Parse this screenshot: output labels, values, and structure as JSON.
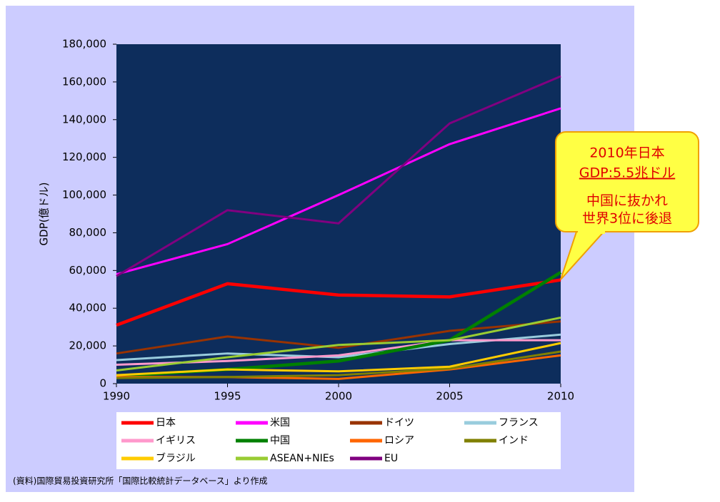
{
  "chart_data": {
    "type": "line",
    "ylabel": "GDP(億ドル)",
    "x": [
      1990,
      1995,
      2000,
      2005,
      2010
    ],
    "xlim": [
      1990,
      2010
    ],
    "xticks": [
      1990,
      1995,
      2000,
      2005,
      2010
    ],
    "ylim": [
      0,
      180000
    ],
    "yticks": [
      0,
      {
        "value": 20000,
        "label": "20,000"
      },
      {
        "value": 40000,
        "label": "40,000"
      },
      {
        "value": 60000,
        "label": "60,000"
      },
      {
        "value": 80000,
        "label": "80,000"
      },
      {
        "value": 100000,
        "label": "100,000"
      },
      {
        "value": 120000,
        "label": "120,000"
      },
      {
        "value": 140000,
        "label": "140,000"
      },
      {
        "value": 160000,
        "label": "160,000"
      },
      {
        "value": 180000,
        "label": "180,000"
      }
    ],
    "grid": false,
    "series": [
      {
        "name": "日本",
        "color": "#ff0000",
        "values": [
          31000,
          53000,
          47000,
          46000,
          55000
        ]
      },
      {
        "name": "米国",
        "color": "#ff00ff",
        "values": [
          58000,
          74000,
          100000,
          127000,
          146000
        ]
      },
      {
        "name": "ドイツ",
        "color": "#993300",
        "values": [
          16000,
          25000,
          19000,
          28000,
          33000
        ]
      },
      {
        "name": "フランス",
        "color": "#99ccdd",
        "values": [
          12500,
          16000,
          14000,
          21000,
          26000
        ]
      },
      {
        "name": "イギリス",
        "color": "#ff99cc",
        "values": [
          10000,
          12000,
          15000,
          23000,
          23000
        ]
      },
      {
        "name": "中国",
        "color": "#008000",
        "values": [
          4000,
          7500,
          12000,
          23000,
          59000
        ]
      },
      {
        "name": "ロシア",
        "color": "#ff6600",
        "values": [
          3500,
          3500,
          2500,
          7500,
          15000
        ]
      },
      {
        "name": "インド",
        "color": "#808000",
        "values": [
          3000,
          3500,
          4500,
          8000,
          17000
        ]
      },
      {
        "name": "ブラジル",
        "color": "#ffcc00",
        "values": [
          4500,
          7500,
          6500,
          9000,
          21500
        ]
      },
      {
        "name": "ASEAN+NIEs",
        "color": "#99cc33",
        "values": [
          7000,
          14000,
          20500,
          23000,
          35000
        ]
      },
      {
        "name": "EU",
        "color": "#800080",
        "values": [
          57000,
          92000,
          85000,
          138000,
          163000
        ]
      }
    ],
    "annotation": [
      "2010年日本",
      "GDP:5.5兆ドル",
      "中国に抜かれ",
      "世界3位に後退"
    ],
    "source": "(資料)国際貿易投資研究所「国際比較統計データベース」より作成"
  }
}
